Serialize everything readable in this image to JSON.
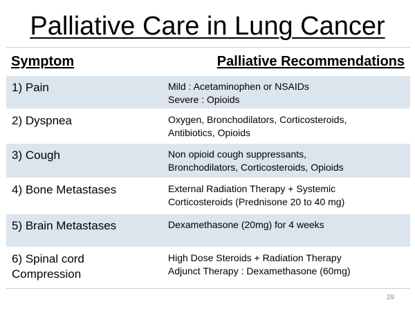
{
  "title": "Palliative Care in Lung Cancer",
  "table": {
    "header": {
      "symptom": "Symptom",
      "recommendations": "Palliative Recommendations"
    },
    "rows": [
      {
        "symptom": "1) Pain",
        "rec_lines": [
          "Mild : Acetaminophen or NSAIDs",
          "Severe :  Opioids"
        ]
      },
      {
        "symptom": "2) Dyspnea",
        "rec_lines": [
          "Oxygen, Bronchodilators, Corticosteroids,",
          "Antibiotics, Opioids"
        ]
      },
      {
        "symptom": "3) Cough",
        "rec_lines": [
          "Non opioid cough suppressants,",
          "Bronchodilators, Corticosteroids, Opioids"
        ]
      },
      {
        "symptom": "4) Bone Metastases",
        "rec_lines": [
          "External Radiation Therapy +  Systemic",
          "Corticosteroids (Prednisone 20 to 40 mg)"
        ]
      },
      {
        "symptom": "5) Brain Metastases",
        "rec_lines": [
          "Dexamethasone (20mg) for 4 weeks"
        ]
      },
      {
        "symptom_lines": [
          "6) Spinal cord",
          "Compression"
        ],
        "rec_lines": [
          "High Dose Steroids +  Radiation Therapy",
          "Adjunct Therapy : Dexamethasone (60mg)"
        ]
      }
    ]
  },
  "page_number": "29",
  "colors": {
    "row_shaded": "#dce4ee",
    "row_plain": "#ffffff",
    "rule": "#cfcfcf"
  }
}
